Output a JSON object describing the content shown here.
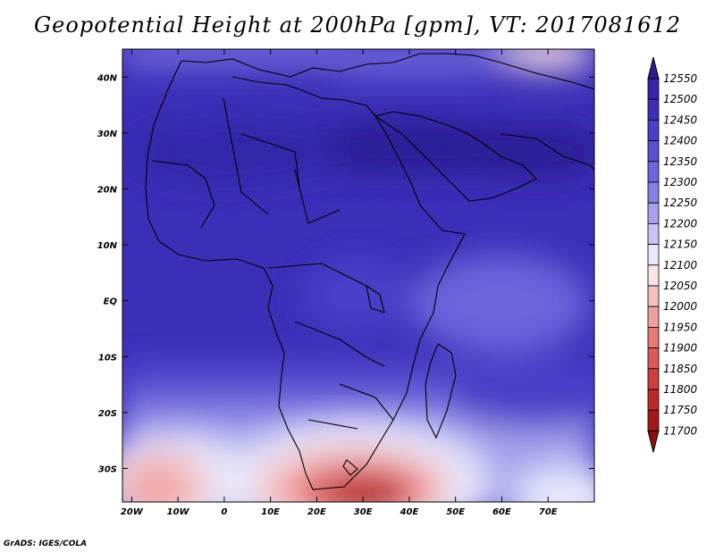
{
  "title": "Geopotential Height at 200hPa [gpm], VT: 2017081612",
  "credit": "GrADS: IGES/COLA",
  "map": {
    "lon_range": [
      -22,
      80
    ],
    "lat_range": [
      -36,
      45
    ],
    "x_ticks": [
      "20W",
      "10W",
      "0",
      "10E",
      "20E",
      "30E",
      "40E",
      "50E",
      "60E",
      "70E"
    ],
    "x_tick_values": [
      -20,
      -10,
      0,
      10,
      20,
      30,
      40,
      50,
      60,
      70
    ],
    "y_ticks": [
      "40N",
      "30N",
      "20N",
      "10N",
      "EQ",
      "10S",
      "20S",
      "30S"
    ],
    "y_tick_values": [
      40,
      30,
      20,
      10,
      0,
      -10,
      -20,
      -30
    ]
  },
  "colorbar": {
    "levels": [
      "12550",
      "12500",
      "12450",
      "12400",
      "12350",
      "12300",
      "12250",
      "12200",
      "12150",
      "12100",
      "12050",
      "12000",
      "11950",
      "11900",
      "11850",
      "11800",
      "11750",
      "11700"
    ],
    "colors": [
      "#2a1f94",
      "#3225a8",
      "#3b2fb8",
      "#4a3fc8",
      "#5a50d2",
      "#6d65dc",
      "#8680e4",
      "#a5a1ec",
      "#c8c6f4",
      "#e8e8fb",
      "#fbe4e4",
      "#f6c0c0",
      "#ef9f9f",
      "#e67a7a",
      "#dc5a5a",
      "#cf3f3f",
      "#bd2a2a",
      "#a31818",
      "#8a0f0f"
    ]
  }
}
